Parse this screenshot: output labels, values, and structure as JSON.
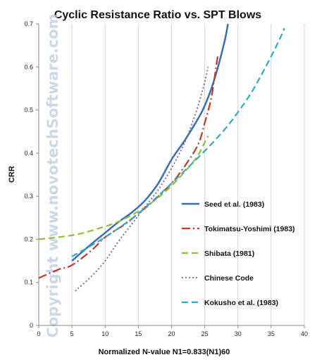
{
  "chart_data": {
    "type": "line",
    "title": "Cyclic Resistance Ratio vs. SPT Blows",
    "xlabel": "Normalized  N-value   N1=0.833(N1)60",
    "ylabel": "CRR",
    "xlim": [
      0,
      40
    ],
    "ylim": [
      0,
      0.7
    ],
    "xticks": [
      0,
      5,
      10,
      15,
      20,
      25,
      30,
      35,
      40
    ],
    "yticks": [
      0,
      0.1,
      0.2,
      0.3,
      0.4,
      0.5,
      0.6,
      0.7
    ],
    "grid": "vertical gridlines",
    "legend_position": "lower-right",
    "watermark": "Copyright www.novotechSoftware.com",
    "series": [
      {
        "name": "Seed et al. (1983)",
        "color": "#3a6eb0",
        "style": "solid",
        "x": [
          5,
          8,
          10,
          12,
          14,
          16,
          18,
          20,
          22,
          24,
          25,
          26,
          27,
          28,
          28.5
        ],
        "y": [
          0.15,
          0.19,
          0.215,
          0.24,
          0.262,
          0.29,
          0.33,
          0.385,
          0.43,
          0.48,
          0.51,
          0.55,
          0.6,
          0.66,
          0.7
        ]
      },
      {
        "name": "Tokimatsu-Yoshimi (1983)",
        "color": "#c0392b",
        "style": "dashdot",
        "x": [
          0,
          3,
          5,
          8,
          10,
          13,
          15,
          17,
          20,
          22,
          24,
          25,
          26,
          27
        ],
        "y": [
          0.11,
          0.13,
          0.14,
          0.175,
          0.205,
          0.235,
          0.26,
          0.285,
          0.33,
          0.37,
          0.42,
          0.47,
          0.53,
          0.63
        ]
      },
      {
        "name": "Shibata (1981)",
        "color": "#8dc03a",
        "style": "dashed",
        "x": [
          0,
          3,
          6,
          9,
          11,
          13,
          15,
          17,
          19,
          21,
          23,
          24,
          25,
          25.5
        ],
        "y": [
          0.2,
          0.205,
          0.212,
          0.225,
          0.235,
          0.248,
          0.265,
          0.285,
          0.31,
          0.34,
          0.375,
          0.395,
          0.425,
          0.44
        ]
      },
      {
        "name": "Chinese Code",
        "color": "#7a5aa6",
        "style": "dotted",
        "x": [
          5.5,
          8,
          10,
          12,
          14,
          16,
          18,
          20,
          22,
          23,
          24,
          25,
          25.5
        ],
        "y": [
          0.08,
          0.115,
          0.15,
          0.195,
          0.235,
          0.275,
          0.315,
          0.365,
          0.425,
          0.465,
          0.51,
          0.565,
          0.6
        ]
      },
      {
        "name": "Kokusho et al. (1983)",
        "color": "#2ea8cc",
        "style": "dashed",
        "x": [
          5,
          10,
          15,
          20,
          25,
          28,
          30,
          32,
          34,
          36,
          37
        ],
        "y": [
          0.16,
          0.205,
          0.26,
          0.33,
          0.405,
          0.455,
          0.495,
          0.54,
          0.595,
          0.655,
          0.69
        ]
      }
    ]
  }
}
